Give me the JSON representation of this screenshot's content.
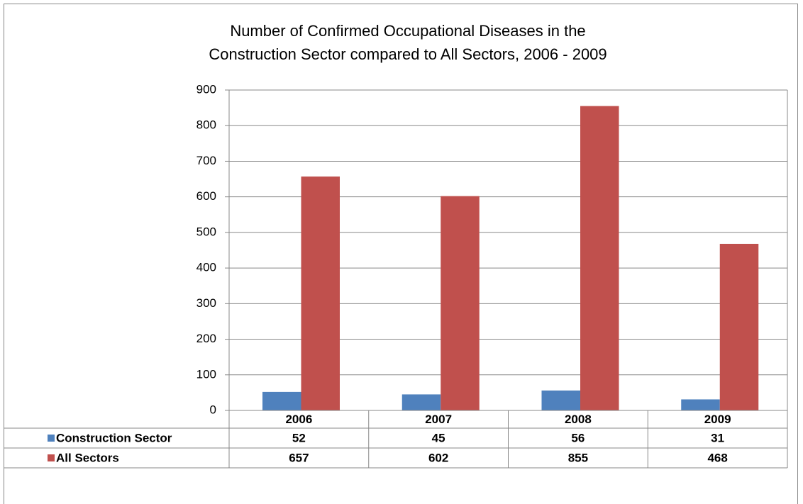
{
  "chart_data": {
    "type": "bar",
    "title": [
      "Number of Confirmed Occupational Diseases in the",
      "Construction Sector compared to All Sectors, 2006 - 2009"
    ],
    "categories": [
      "2006",
      "2007",
      "2008",
      "2009"
    ],
    "series": [
      {
        "name": "Construction Sector",
        "color": "#4f81bd",
        "values": [
          52,
          45,
          56,
          31
        ]
      },
      {
        "name": "All Sectors",
        "color": "#c0504d",
        "values": [
          657,
          602,
          855,
          468
        ]
      }
    ],
    "ylim": [
      0,
      900
    ],
    "yticks": [
      0,
      100,
      200,
      300,
      400,
      500,
      600,
      700,
      800,
      900
    ],
    "grid": true
  }
}
